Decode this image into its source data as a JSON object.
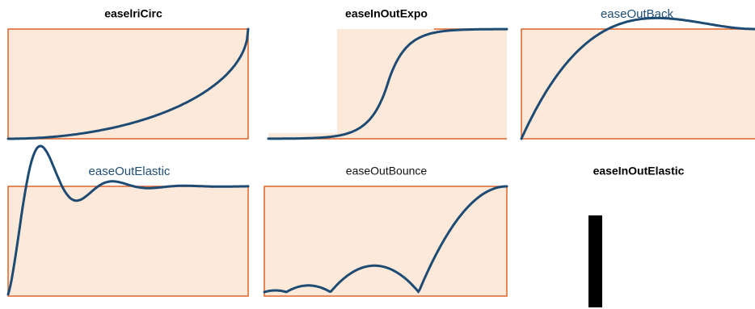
{
  "panels": [
    {
      "title": "easelriCirc"
    },
    {
      "title": "easeInOutExpo"
    },
    {
      "title": "easeOutBack"
    },
    {
      "title": "easeOutElastic"
    },
    {
      "title": "easeOutBounce"
    },
    {
      "title": "easeInOutElastic"
    }
  ]
}
